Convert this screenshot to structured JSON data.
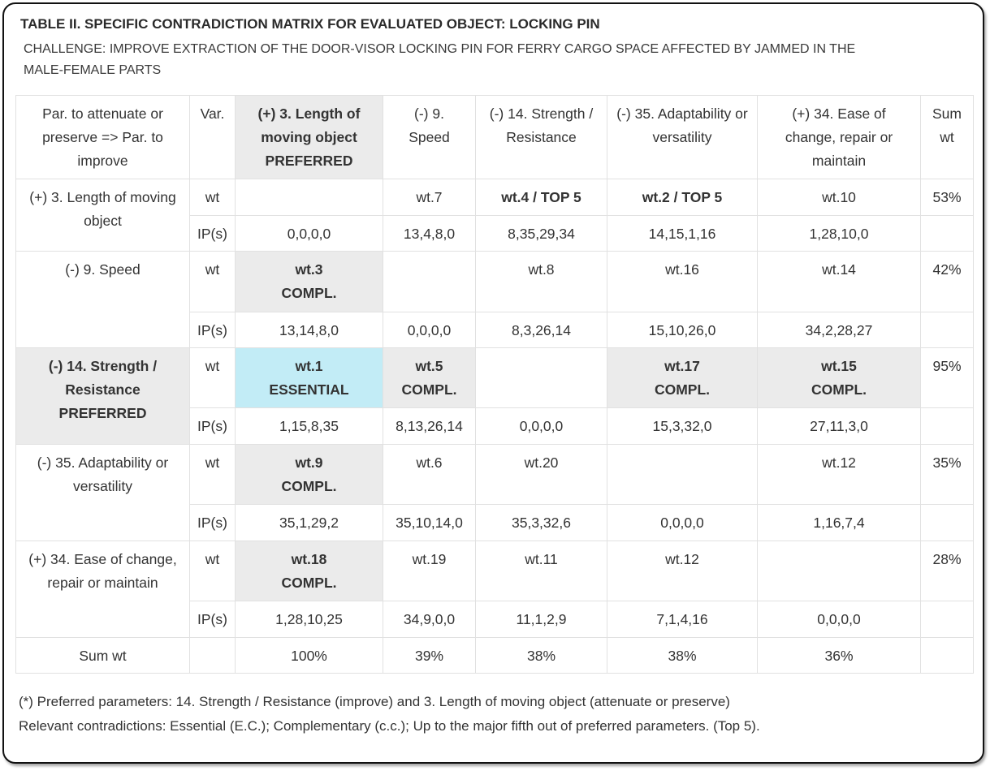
{
  "title": "TABLE II. SPECIFIC CONTRADICTION MATRIX FOR EVALUATED OBJECT: LOCKING PIN",
  "subtitle": "CHALLENGE: IMPROVE EXTRACTION OF THE DOOR-VISOR LOCKING PIN FOR FERRY CARGO SPACE AFFECTED BY JAMMED IN THE MALE-FEMALE PARTS",
  "header": {
    "corner": "Par. to attenuate or preserve => Par. to improve",
    "var": "Var.",
    "col1": "(+) 3. Length of moving object PREFERRED",
    "col2": "(-) 9. Speed",
    "col3": "(-) 14. Strength / Resistance",
    "col4": "(-) 35. Adaptability or versatility",
    "col5": "(+) 34. Ease of change, repair or maintain",
    "sum": "Sum wt"
  },
  "rows": [
    {
      "label": "(+) 3. Length of moving object",
      "wt_label": "wt",
      "ip_label": "IP(s)",
      "wt": [
        "",
        "wt.7",
        "wt.4 / TOP 5",
        "wt.2 / TOP 5",
        "wt.10"
      ],
      "ip": [
        "0,0,0,0",
        "13,4,8,0",
        "8,35,29,34",
        "14,15,1,16",
        "1,28,10,0"
      ],
      "sum": "53%"
    },
    {
      "label": "(-) 9. Speed",
      "wt_label": "wt",
      "ip_label": "IP(s)",
      "wt": [
        "wt.3 COMPL.",
        "",
        "wt.8",
        "wt.16",
        "wt.14"
      ],
      "ip": [
        "13,14,8,0",
        "0,0,0,0",
        "8,3,26,14",
        "15,10,26,0",
        "34,2,28,27"
      ],
      "sum": "42%"
    },
    {
      "label": "(-) 14. Strength / Resistance PREFERRED",
      "wt_label": "wt",
      "ip_label": "IP(s)",
      "wt": [
        "wt.1 ESSENTIAL",
        "wt.5 COMPL.",
        "",
        "wt.17 COMPL.",
        "wt.15 COMPL."
      ],
      "ip": [
        "1,15,8,35",
        "8,13,26,14",
        "0,0,0,0",
        "15,3,32,0",
        "27,11,3,0"
      ],
      "sum": "95%"
    },
    {
      "label": "(-) 35. Adaptability or versatility",
      "wt_label": "wt",
      "ip_label": "IP(s)",
      "wt": [
        "wt.9 COMPL.",
        "wt.6",
        "wt.20",
        "",
        "wt.12"
      ],
      "ip": [
        "35,1,29,2",
        "35,10,14,0",
        "35,3,32,6",
        "0,0,0,0",
        "1,16,7,4"
      ],
      "sum": "35%"
    },
    {
      "label": "(+) 34. Ease of change, repair or maintain",
      "wt_label": "wt",
      "ip_label": "IP(s)",
      "wt": [
        "wt.18 COMPL.",
        "wt.19",
        "wt.11",
        "wt.12",
        ""
      ],
      "ip": [
        "1,28,10,25",
        "34,9,0,0",
        "11,1,2,9",
        "7,1,4,16",
        "0,0,0,0"
      ],
      "sum": "28%"
    }
  ],
  "sum_row": {
    "label": "Sum wt",
    "values": [
      "100%",
      "39%",
      "38%",
      "38%",
      "36%"
    ]
  },
  "notes": {
    "line1": "(*) Preferred parameters: 14. Strength / Resistance (improve) and 3. Length of moving object (attenuate or preserve)",
    "line2": "Relevant contradictions: Essential (E.C.); Complementary (c.c.); Up to the major fifth out of preferred parameters. (Top 5)."
  }
}
